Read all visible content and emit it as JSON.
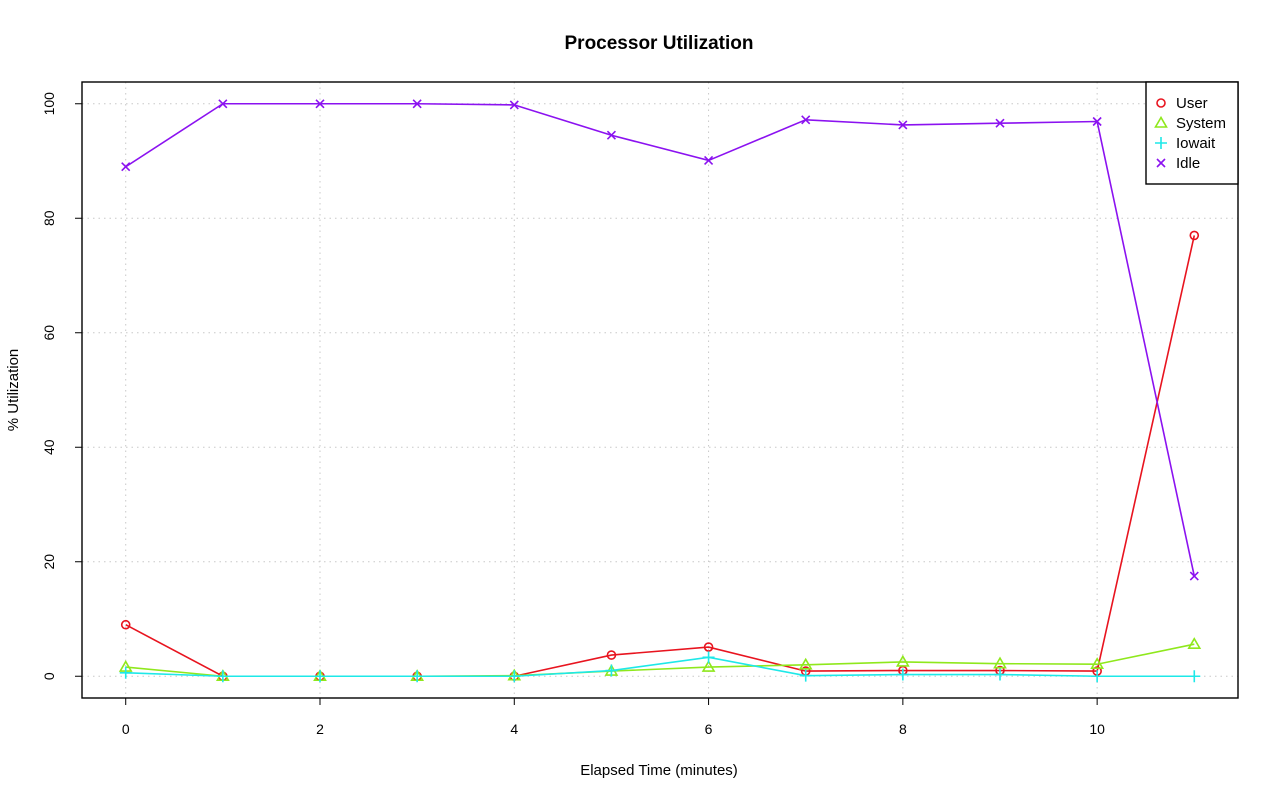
{
  "chart_data": {
    "type": "line",
    "title": "Processor Utilization",
    "xlabel": "Elapsed Time (minutes)",
    "ylabel": "% Utilization",
    "xlim": [
      -0.45,
      11.45
    ],
    "ylim": [
      -3.8,
      103.8
    ],
    "x_ticks": [
      0,
      2,
      4,
      6,
      8,
      10
    ],
    "y_ticks": [
      0,
      20,
      40,
      60,
      80,
      100
    ],
    "grid": true,
    "legend_position": "top-right",
    "x": [
      0,
      1,
      2,
      3,
      4,
      5,
      6,
      7,
      8,
      9,
      10,
      11
    ],
    "series": [
      {
        "name": "User",
        "color": "#e8141f",
        "marker": "circle",
        "values": [
          9.0,
          0.0,
          0.0,
          0.0,
          0.0,
          3.7,
          5.1,
          0.9,
          1.0,
          1.0,
          0.9,
          77.0
        ]
      },
      {
        "name": "System",
        "color": "#8fe81c",
        "marker": "triangle",
        "values": [
          1.6,
          0.0,
          0.0,
          0.0,
          0.1,
          0.9,
          1.6,
          2.0,
          2.5,
          2.2,
          2.1,
          5.6
        ]
      },
      {
        "name": "Iowait",
        "color": "#1ee8e8",
        "marker": "plus",
        "values": [
          0.6,
          0.0,
          0.0,
          0.0,
          0.0,
          1.0,
          3.3,
          0.1,
          0.3,
          0.3,
          0.0,
          0.0
        ]
      },
      {
        "name": "Idle",
        "color": "#8b12f0",
        "marker": "cross",
        "values": [
          89.0,
          100.0,
          100.0,
          100.0,
          99.8,
          94.5,
          90.1,
          97.2,
          96.3,
          96.6,
          96.9,
          17.5
        ]
      }
    ]
  }
}
